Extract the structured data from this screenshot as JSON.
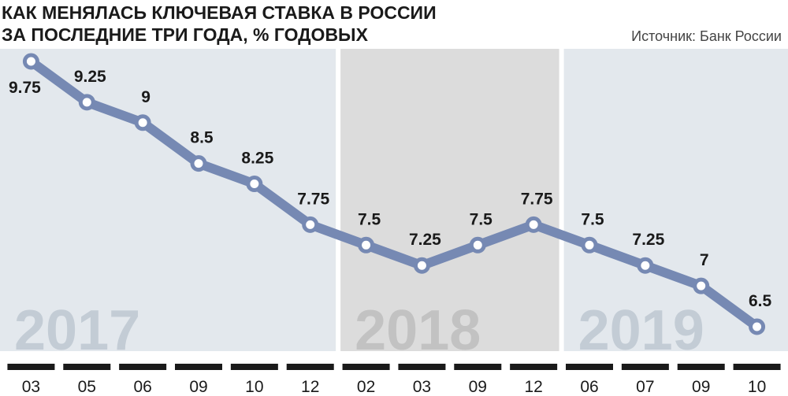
{
  "chart_data": {
    "type": "line",
    "title": [
      "КАК МЕНЯЛАСЬ КЛЮЧЕВАЯ СТАВКА В РОССИИ",
      "ЗА ПОСЛЕДНИЕ ТРИ ГОДА, % ГОДОВЫХ"
    ],
    "source": "Источник: Банк России",
    "categories": [
      "03",
      "05",
      "06",
      "09",
      "10",
      "12",
      "02",
      "03",
      "09",
      "12",
      "06",
      "07",
      "09",
      "10"
    ],
    "values": [
      9.75,
      9.25,
      9,
      8.5,
      8.25,
      7.75,
      7.5,
      7.25,
      7.5,
      7.75,
      7.5,
      7.25,
      7,
      6.5
    ],
    "color": "#7689b3",
    "periods": [
      {
        "label": "2017",
        "size": 6,
        "color": "#e3e8ed",
        "label_color": "#c3ccd5"
      },
      {
        "label": "2018",
        "size": 4,
        "color": "#dcdcdc",
        "label_color": "#c2c2c2"
      },
      {
        "label": "2019",
        "size": 4,
        "color": "#e3e8ed",
        "label_color": "#c3ccd5"
      }
    ]
  }
}
